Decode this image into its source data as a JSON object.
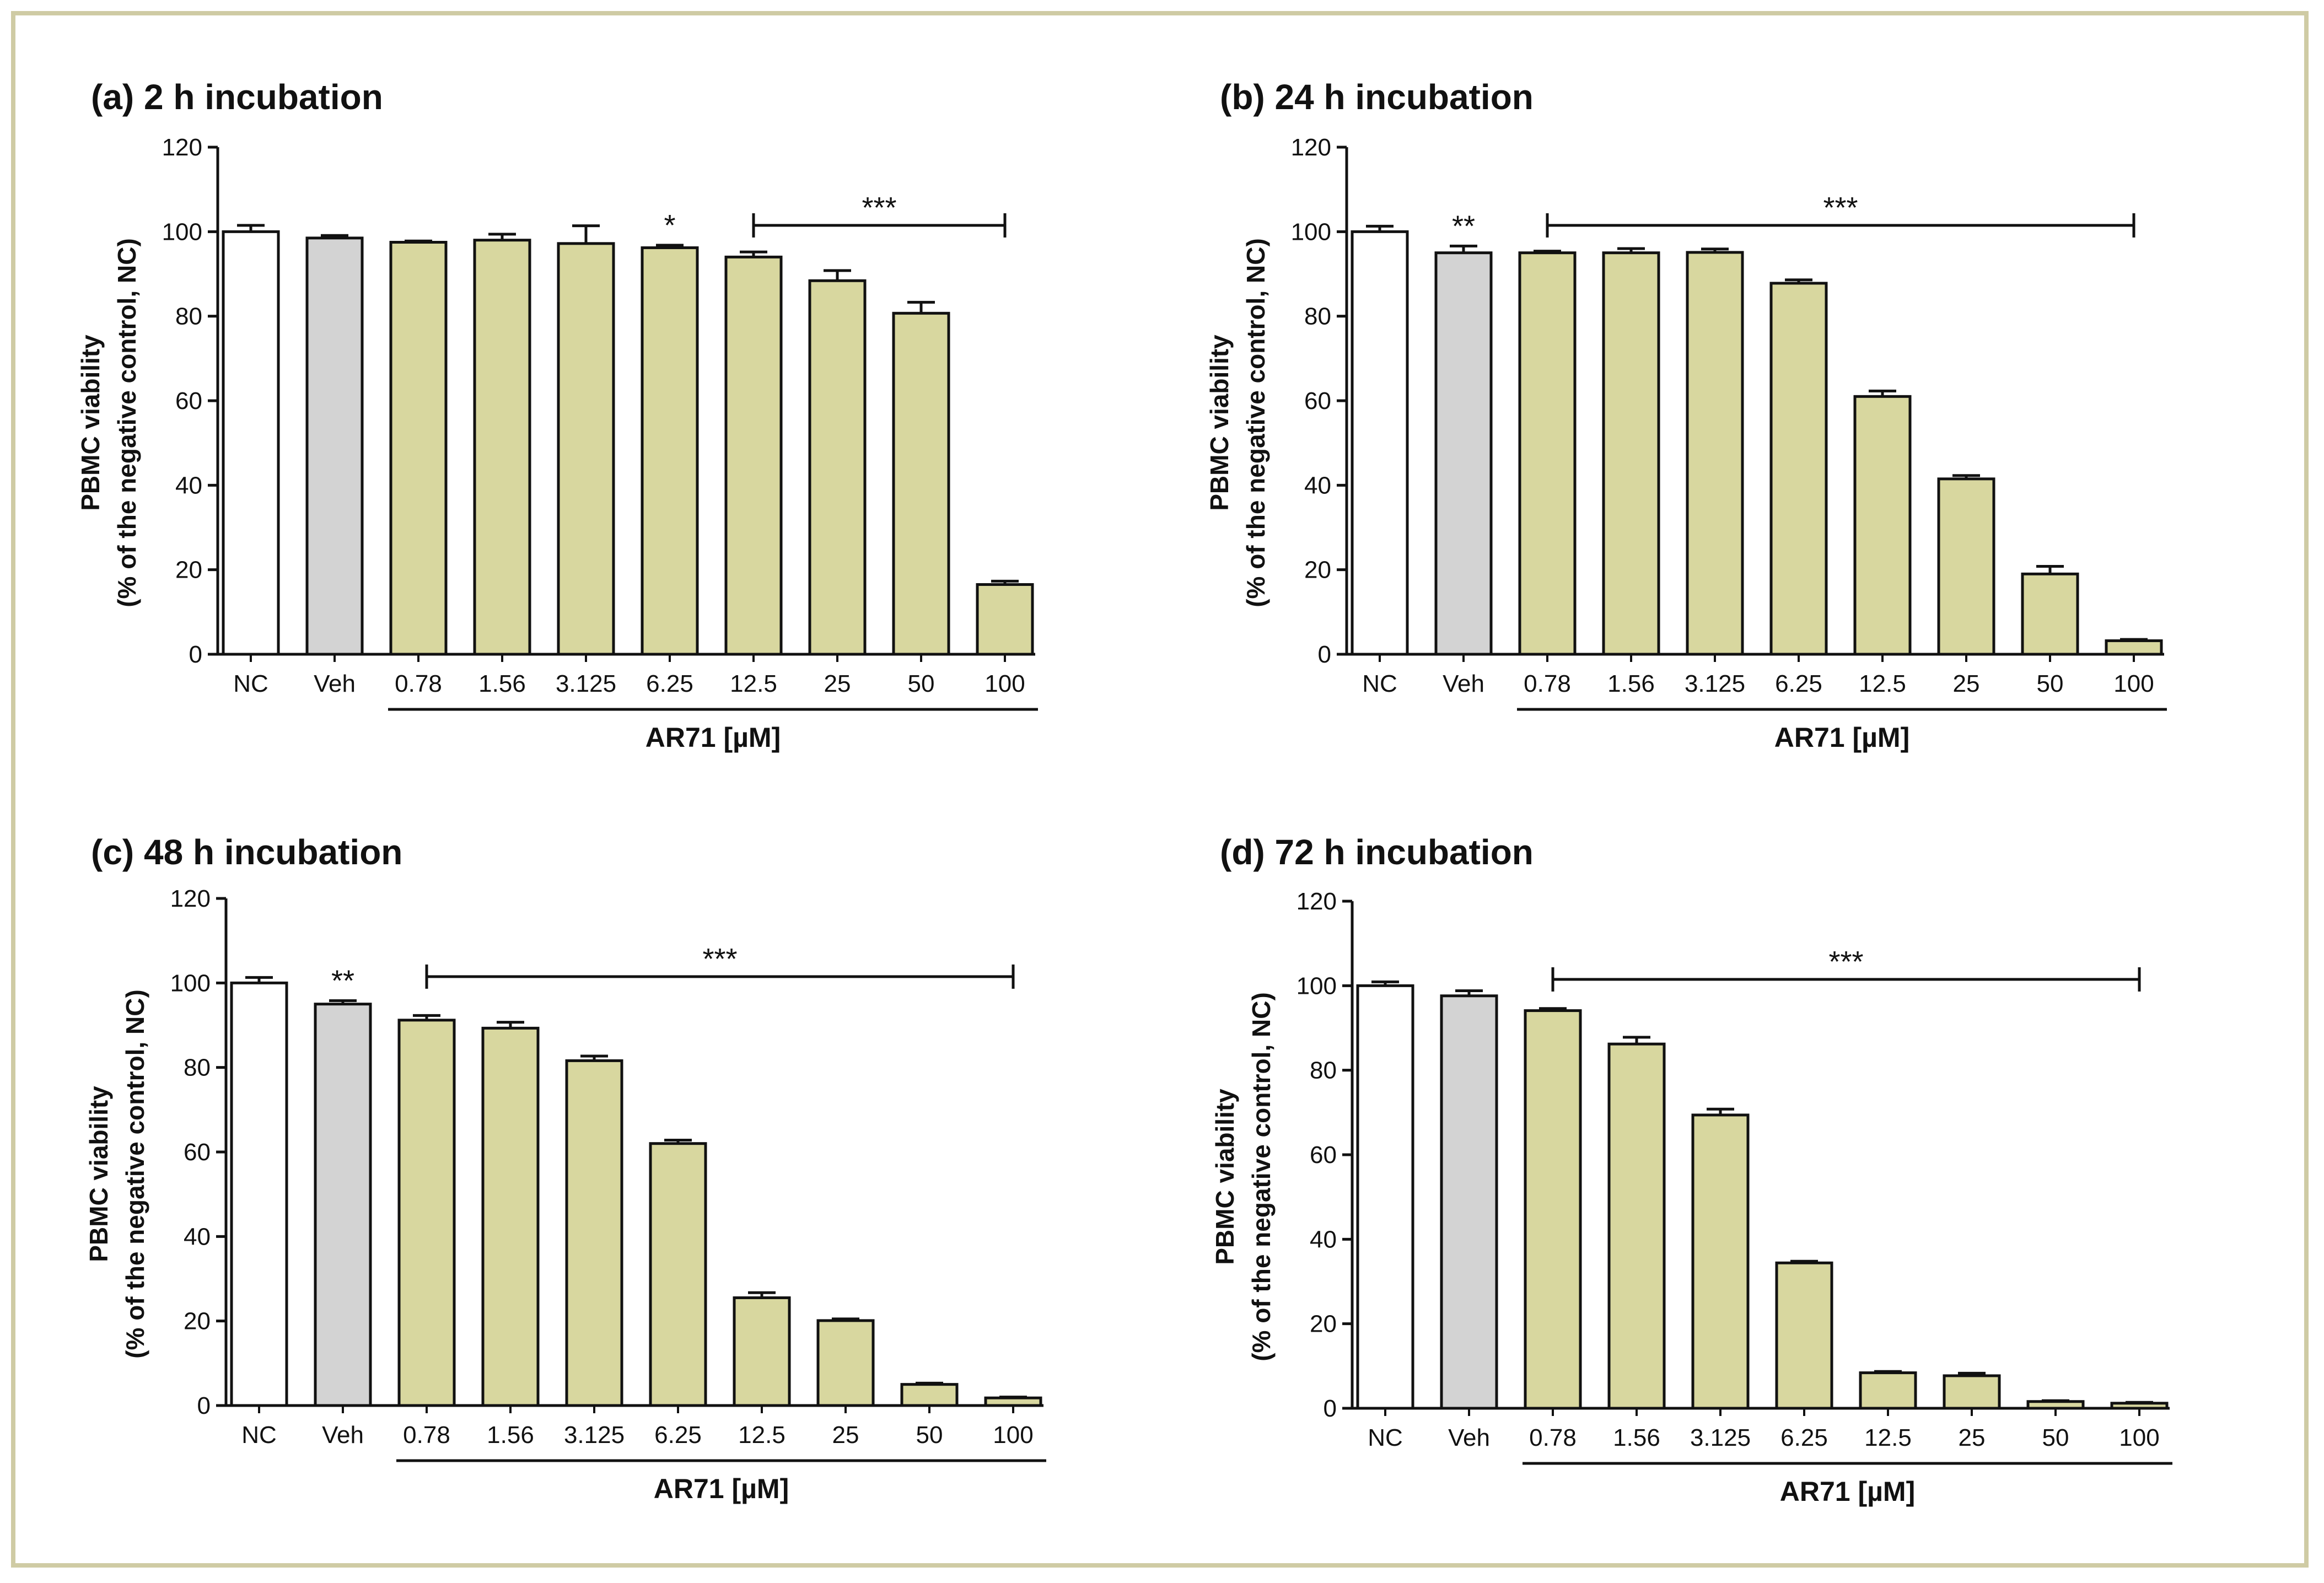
{
  "figure": {
    "frame_color": "#cfcba4",
    "bar_colors": {
      "NC": "#ffffff",
      "Veh": "#d3d3d3",
      "treatment": "#d8d79f"
    }
  },
  "chart_data": [
    {
      "type": "bar",
      "title": "(a) 2 h incubation",
      "categories": [
        "NC",
        "Veh",
        "0.78",
        "1.56",
        "3.125",
        "6.25",
        "12.5",
        "25",
        "50",
        "100"
      ],
      "values": [
        100,
        98.5,
        97.5,
        98,
        97.2,
        96.2,
        94,
        88.4,
        80.7,
        16.5
      ],
      "errors": [
        1.5,
        0.6,
        0.3,
        1.4,
        4.2,
        0.6,
        1.2,
        2.4,
        2.6,
        0.8
      ],
      "ylabel_line1": "PBMC viability",
      "ylabel_line2": "(% of the negative control, NC)",
      "xlabel": "AR71 [µM]",
      "ylim": [
        0,
        120
      ],
      "yticks": [
        0,
        20,
        40,
        60,
        80,
        100,
        120
      ],
      "significance": [
        {
          "label": "*",
          "from": 5,
          "to": 5,
          "y": 97.5
        },
        {
          "label": "***",
          "from": 6,
          "to": 9,
          "y": 101.5
        }
      ]
    },
    {
      "type": "bar",
      "title": "(b) 24 h incubation",
      "categories": [
        "NC",
        "Veh",
        "0.78",
        "1.56",
        "3.125",
        "6.25",
        "12.5",
        "25",
        "50",
        "100"
      ],
      "values": [
        100,
        95,
        95,
        95,
        95.1,
        87.8,
        61,
        41.5,
        19,
        3.2
      ],
      "errors": [
        1.3,
        1.6,
        0.4,
        1,
        0.8,
        0.8,
        1.3,
        0.8,
        1.8,
        0.3
      ],
      "ylabel_line1": "PBMC viability",
      "ylabel_line2": "(% of the negative control, NC)",
      "xlabel": "AR71 [µM]",
      "ylim": [
        0,
        120
      ],
      "yticks": [
        0,
        20,
        40,
        60,
        80,
        100,
        120
      ],
      "significance": [
        {
          "label": "**",
          "from": 1,
          "to": 1,
          "y": 97.5
        },
        {
          "label": "***",
          "from": 2,
          "to": 9,
          "y": 101.5
        }
      ]
    },
    {
      "type": "bar",
      "title": "(c) 48 h incubation",
      "categories": [
        "NC",
        "Veh",
        "0.78",
        "1.56",
        "3.125",
        "6.25",
        "12.5",
        "25",
        "50",
        "100"
      ],
      "values": [
        100,
        95,
        91.2,
        89.3,
        81.6,
        62,
        25.5,
        20.1,
        5,
        1.8
      ],
      "errors": [
        1.3,
        0.8,
        1.1,
        1.4,
        1.1,
        0.8,
        1.2,
        0.4,
        0.3,
        0.2
      ],
      "ylabel_line1": "PBMC viability",
      "ylabel_line2": "(% of the negative control, NC)",
      "xlabel": "AR71 [µM]",
      "ylim": [
        0,
        120
      ],
      "yticks": [
        0,
        20,
        40,
        60,
        80,
        100,
        120
      ],
      "significance": [
        {
          "label": "**",
          "from": 1,
          "to": 1,
          "y": 97.5
        },
        {
          "label": "***",
          "from": 2,
          "to": 9,
          "y": 101.5
        }
      ]
    },
    {
      "type": "bar",
      "title": "(d) 72 h incubation",
      "categories": [
        "NC",
        "Veh",
        "0.78",
        "1.56",
        "3.125",
        "6.25",
        "12.5",
        "25",
        "50",
        "100"
      ],
      "values": [
        100,
        97.6,
        94.1,
        86.2,
        69.4,
        34.4,
        8.4,
        7.7,
        1.6,
        1.2
      ],
      "errors": [
        0.9,
        1.2,
        0.5,
        1.6,
        1.4,
        0.4,
        0.3,
        0.6,
        0.2,
        0.2
      ],
      "ylabel_line1": "PBMC viability",
      "ylabel_line2": "(% of the negative control, NC)",
      "xlabel": "AR71 [µM]",
      "ylim": [
        0,
        120
      ],
      "yticks": [
        0,
        20,
        40,
        60,
        80,
        100,
        120
      ],
      "significance": [
        {
          "label": "***",
          "from": 2,
          "to": 9,
          "y": 101.5
        }
      ]
    }
  ]
}
